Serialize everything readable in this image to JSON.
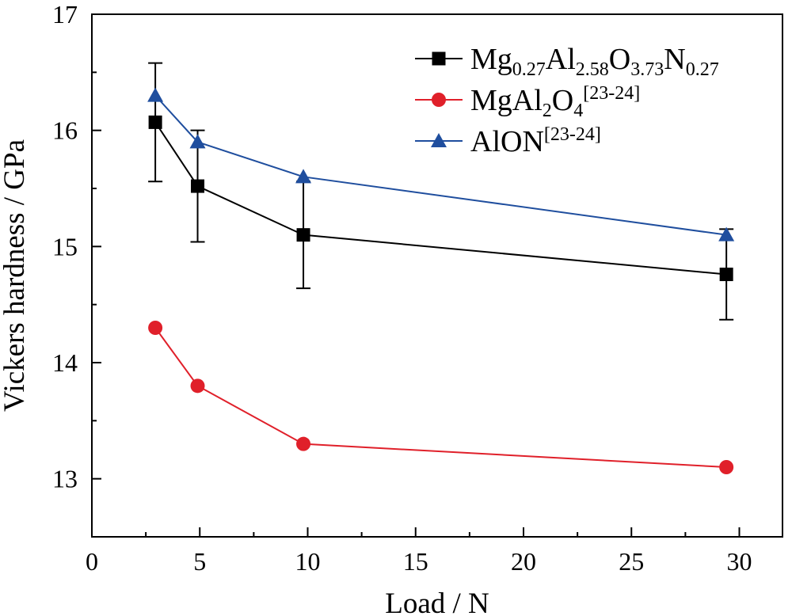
{
  "chart_data": {
    "type": "line",
    "xlabel": "Load / N",
    "ylabel": "Vickers hardness / GPa",
    "xlim": [
      0,
      32
    ],
    "ylim": [
      12.5,
      17
    ],
    "xticks": [
      0,
      5,
      10,
      15,
      20,
      25,
      30
    ],
    "yticks": [
      13,
      14,
      15,
      16,
      17
    ],
    "legend_position": "top-right",
    "series": [
      {
        "name": "Mg0.27Al2.58O3.73N0.27",
        "legend": {
          "base": "Mg",
          "sub1": "0.27",
          "el2": "Al",
          "sub2": "2.58",
          "el3": "O",
          "sub3": "3.73",
          "el4": "N",
          "sub4": "0.27"
        },
        "color": "#000000",
        "marker": "square",
        "x": [
          2.94,
          4.9,
          9.8,
          29.4
        ],
        "y": [
          16.07,
          15.52,
          15.1,
          14.76
        ],
        "error": [
          0.51,
          0.48,
          0.46,
          0.39
        ]
      },
      {
        "name": "MgAl2O4[23-24]",
        "legend": {
          "base": "MgAl",
          "sub1": "2",
          "el2": "O",
          "sub2": "4",
          "sup": "[23-24]"
        },
        "color": "#e0202a",
        "marker": "circle",
        "x": [
          2.94,
          4.9,
          9.8,
          29.4
        ],
        "y": [
          14.3,
          13.8,
          13.3,
          13.1
        ]
      },
      {
        "name": "AlON[23-24]",
        "legend": {
          "base": "AlON",
          "sup": "[23-24]"
        },
        "color": "#1f4e9e",
        "marker": "triangle",
        "x": [
          2.94,
          4.9,
          9.8,
          29.4
        ],
        "y": [
          16.3,
          15.9,
          15.6,
          15.1
        ]
      }
    ]
  }
}
